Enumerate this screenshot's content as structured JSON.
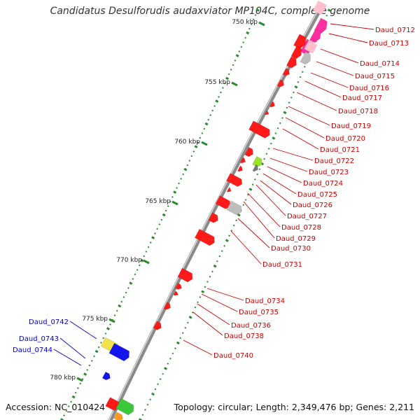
{
  "title": "Candidatus Desulforudis audaxviator MP104C, complete genome",
  "footer": {
    "accession": "Accession: NC_010424",
    "topology": "Topology: circular; Length: 2,349,476 bp; Genes: 2,211"
  },
  "scale_labels": [
    "750 kbp",
    "755 kbp",
    "760 kbp",
    "765 kbp",
    "770 kbp",
    "775 kbp",
    "780 kbp"
  ],
  "colors": {
    "backbone": "#8a8a8a",
    "gene_red": "#ff1a1a",
    "gene_magenta": "#ff2fa0",
    "gene_pink": "#ffc0cb",
    "gene_grey": "#bdbdbd",
    "gene_darkgrey": "#777777",
    "gene_lime": "#9be22b",
    "gene_yellow": "#f2e24a",
    "gene_blue": "#1414ee",
    "gene_green": "#3ac83a",
    "gene_orange": "#ff9a1a",
    "tick_green": "#2b8a2b",
    "label_red": "#cc0000",
    "label_blue": "#0000cc"
  },
  "gene_labels_right": [
    "Daud_0712",
    "Daud_0713",
    "Daud_0714",
    "Daud_0715",
    "Daud_0716",
    "Daud_0717",
    "Daud_0718",
    "Daud_0719",
    "Daud_0720",
    "Daud_0721",
    "Daud_0722",
    "Daud_0723",
    "Daud_0724",
    "Daud_0725",
    "Daud_0726",
    "Daud_0727",
    "Daud_0728",
    "Daud_0729",
    "Daud_0730",
    "Daud_0731",
    "Daud_0734",
    "Daud_0735",
    "Daud_0736",
    "Daud_0738",
    "Daud_0740"
  ],
  "gene_labels_left": [
    "Daud_0742",
    "Daud_0743",
    "Daud_0744"
  ]
}
